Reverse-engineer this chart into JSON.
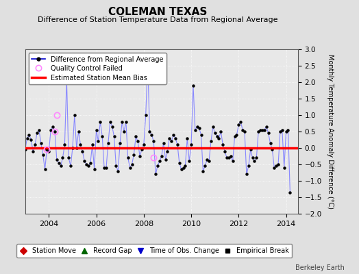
{
  "title": "COLEMAN TEXAS",
  "subtitle": "Difference of Station Temperature Data from Regional Average",
  "ylabel": "Monthly Temperature Anomaly Difference (°C)",
  "credit": "Berkeley Earth",
  "xlim": [
    2003.0,
    2014.5
  ],
  "ylim": [
    -2.0,
    3.0
  ],
  "yticks": [
    -2,
    -1.5,
    -1,
    -0.5,
    0,
    0.5,
    1,
    1.5,
    2,
    2.5,
    3
  ],
  "xticks": [
    2004,
    2006,
    2008,
    2010,
    2012,
    2014
  ],
  "bias_line": 0.0,
  "bias_color": "#ff0000",
  "line_color": "#8888ff",
  "marker_color": "#000000",
  "qc_color": "#ff88ff",
  "fig_facecolor": "#e0e0e0",
  "ax_facecolor": "#e8e8e8",
  "time_series": [
    2003.0,
    2003.083,
    2003.167,
    2003.25,
    2003.333,
    2003.417,
    2003.5,
    2003.583,
    2003.667,
    2003.75,
    2003.833,
    2003.917,
    2004.0,
    2004.083,
    2004.167,
    2004.25,
    2004.333,
    2004.417,
    2004.5,
    2004.583,
    2004.667,
    2004.75,
    2004.833,
    2004.917,
    2005.0,
    2005.083,
    2005.167,
    2005.25,
    2005.333,
    2005.417,
    2005.5,
    2005.583,
    2005.667,
    2005.75,
    2005.833,
    2005.917,
    2006.0,
    2006.083,
    2006.167,
    2006.25,
    2006.333,
    2006.417,
    2006.5,
    2006.583,
    2006.667,
    2006.75,
    2006.833,
    2006.917,
    2007.0,
    2007.083,
    2007.167,
    2007.25,
    2007.333,
    2007.417,
    2007.5,
    2007.583,
    2007.667,
    2007.75,
    2007.833,
    2007.917,
    2008.0,
    2008.083,
    2008.167,
    2008.25,
    2008.333,
    2008.417,
    2008.5,
    2008.583,
    2008.667,
    2008.75,
    2008.833,
    2008.917,
    2009.0,
    2009.083,
    2009.167,
    2009.25,
    2009.333,
    2009.417,
    2009.5,
    2009.583,
    2009.667,
    2009.75,
    2009.833,
    2009.917,
    2010.0,
    2010.083,
    2010.167,
    2010.25,
    2010.333,
    2010.417,
    2010.5,
    2010.583,
    2010.667,
    2010.75,
    2010.833,
    2010.917,
    2011.0,
    2011.083,
    2011.167,
    2011.25,
    2011.333,
    2011.417,
    2011.5,
    2011.583,
    2011.667,
    2011.75,
    2011.833,
    2011.917,
    2012.0,
    2012.083,
    2012.167,
    2012.25,
    2012.333,
    2012.417,
    2012.5,
    2012.583,
    2012.667,
    2012.75,
    2012.833,
    2012.917,
    2013.0,
    2013.083,
    2013.167,
    2013.25,
    2013.333,
    2013.417,
    2013.5,
    2013.583,
    2013.667,
    2013.75,
    2013.833,
    2013.917,
    2014.0,
    2014.083,
    2014.167
  ],
  "values": [
    -0.05,
    0.3,
    0.4,
    0.25,
    -0.1,
    0.1,
    0.45,
    0.55,
    0.15,
    -0.2,
    -0.65,
    -0.05,
    -0.1,
    0.55,
    0.65,
    0.5,
    -0.35,
    -0.45,
    -0.55,
    -0.3,
    0.1,
    2.1,
    -0.3,
    -0.55,
    0.0,
    1.0,
    0.0,
    0.5,
    0.1,
    -0.1,
    -0.4,
    -0.5,
    -0.55,
    -0.45,
    0.1,
    -0.65,
    0.55,
    0.2,
    0.8,
    0.35,
    -0.6,
    -0.6,
    0.15,
    0.8,
    0.65,
    0.35,
    -0.55,
    -0.7,
    0.15,
    0.8,
    0.5,
    0.8,
    -0.3,
    -0.6,
    -0.5,
    -0.2,
    0.35,
    0.2,
    -0.25,
    -0.05,
    0.1,
    1.0,
    2.6,
    0.5,
    0.4,
    0.2,
    -0.8,
    -0.55,
    -0.4,
    -0.25,
    0.15,
    -0.35,
    -0.1,
    0.3,
    0.2,
    0.4,
    0.3,
    0.1,
    -0.45,
    -0.65,
    -0.6,
    -0.55,
    0.3,
    -0.4,
    0.1,
    1.9,
    0.55,
    0.65,
    0.6,
    0.4,
    -0.7,
    -0.55,
    -0.35,
    -0.4,
    0.2,
    0.65,
    0.45,
    0.35,
    0.3,
    0.5,
    0.1,
    -0.1,
    -0.3,
    -0.3,
    -0.25,
    -0.4,
    0.35,
    0.4,
    0.7,
    0.8,
    0.55,
    0.5,
    -0.8,
    -0.55,
    -0.05,
    -0.3,
    -0.4,
    -0.3,
    0.5,
    0.55,
    0.55,
    0.55,
    0.65,
    0.45,
    0.15,
    -0.05,
    -0.6,
    -0.55,
    -0.5,
    0.5,
    0.55,
    -0.6,
    0.5,
    0.55,
    -1.35
  ],
  "qc_failed": [
    [
      2003.917,
      -0.05
    ],
    [
      2004.25,
      0.5
    ],
    [
      2004.333,
      1.0
    ],
    [
      2008.417,
      -0.3
    ]
  ]
}
